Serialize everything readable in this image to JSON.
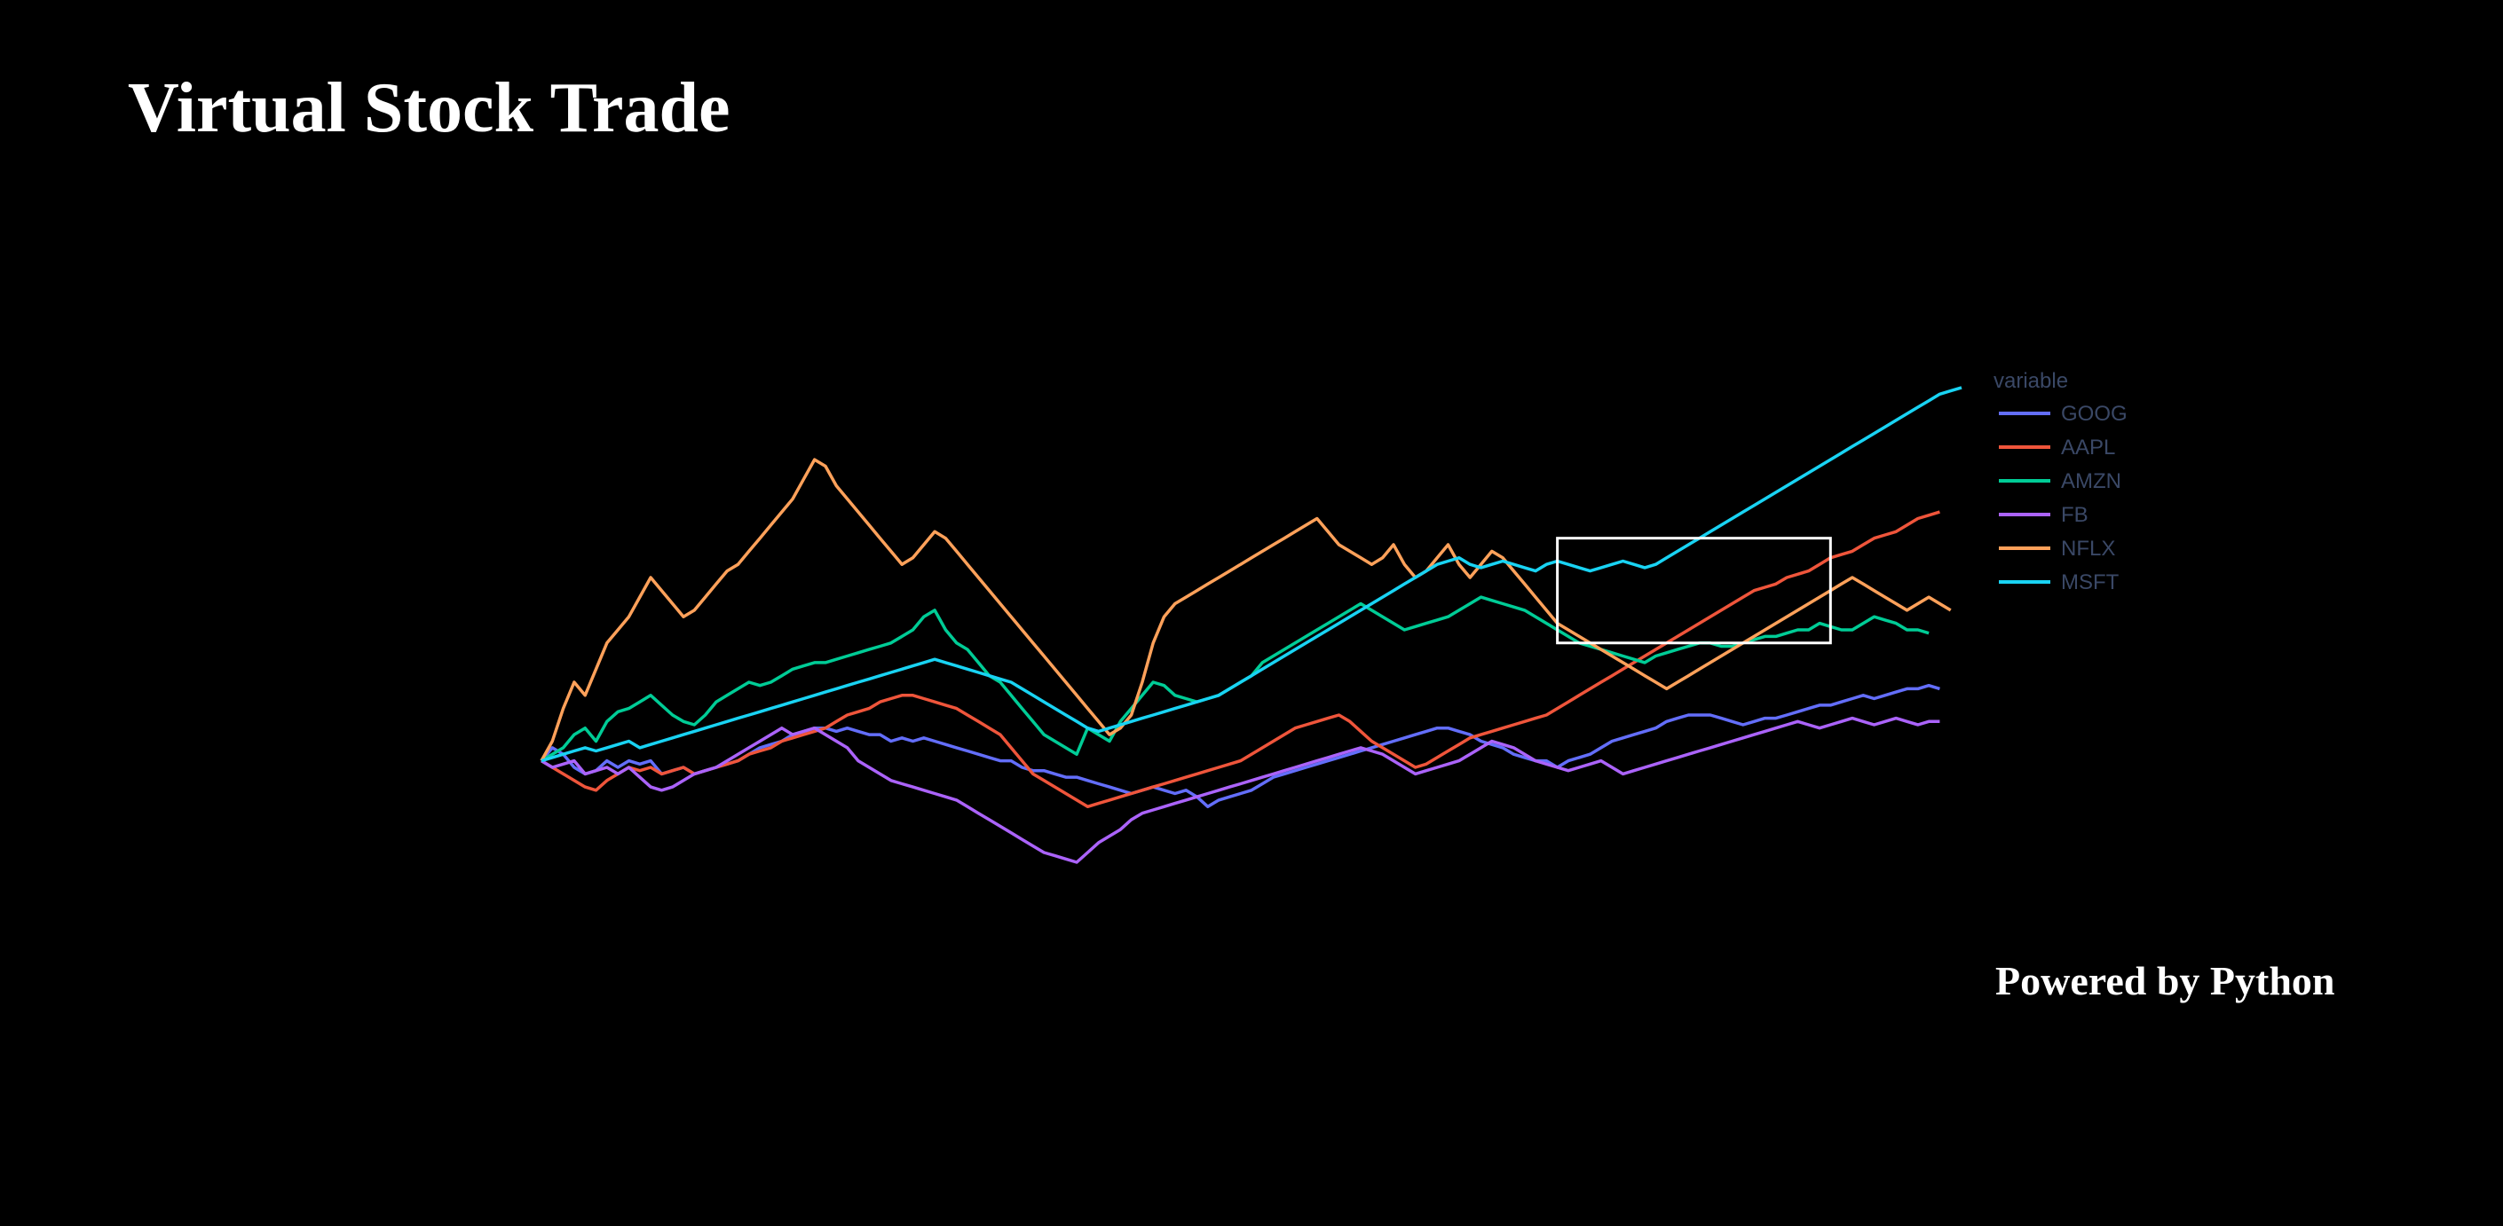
{
  "page": {
    "title": "Virtual Stock Trade",
    "footer": "Powered by Python"
  },
  "chart_data": {
    "type": "line",
    "title": "",
    "xlabel": "",
    "ylabel": "",
    "grid": false,
    "legend_title": "variable",
    "legend_placement": "right",
    "legend_color": "#3a4866",
    "ylim": [
      0.78,
      1.62
    ],
    "selection_box": {
      "x0": 93,
      "x1": 118,
      "y0": 1.34,
      "y1": 1.18
    },
    "series": [
      {
        "name": "GOOG",
        "color": "#636efa",
        "values": [
          1.0,
          1.02,
          1.01,
          0.99,
          0.98,
          0.985,
          1.0,
          0.99,
          1.0,
          0.995,
          1.0,
          0.98,
          0.985,
          0.99,
          0.98,
          0.985,
          0.99,
          0.995,
          1.0,
          1.01,
          1.02,
          1.025,
          1.03,
          1.04,
          1.045,
          1.05,
          1.05,
          1.045,
          1.05,
          1.045,
          1.04,
          1.04,
          1.03,
          1.035,
          1.03,
          1.035,
          1.03,
          1.025,
          1.02,
          1.015,
          1.01,
          1.005,
          1.0,
          1.0,
          0.99,
          0.985,
          0.985,
          0.98,
          0.975,
          0.975,
          0.97,
          0.965,
          0.96,
          0.955,
          0.95,
          0.955,
          0.96,
          0.955,
          0.95,
          0.955,
          0.945,
          0.93,
          0.94,
          0.945,
          0.95,
          0.955,
          0.965,
          0.975,
          0.98,
          0.985,
          0.99,
          0.995,
          1.0,
          1.005,
          1.01,
          1.015,
          1.02,
          1.025,
          1.03,
          1.035,
          1.04,
          1.045,
          1.05,
          1.05,
          1.045,
          1.04,
          1.03,
          1.025,
          1.02,
          1.01,
          1.005,
          1.0,
          1.0,
          0.99,
          1.0,
          1.005,
          1.01,
          1.02,
          1.03,
          1.035,
          1.04,
          1.045,
          1.05,
          1.06,
          1.065,
          1.07,
          1.07,
          1.07,
          1.065,
          1.06,
          1.055,
          1.06,
          1.065,
          1.065,
          1.07,
          1.075,
          1.08,
          1.085,
          1.085,
          1.09,
          1.095,
          1.1,
          1.095,
          1.1,
          1.105,
          1.11,
          1.11,
          1.115,
          1.11
        ]
      },
      {
        "name": "AAPL",
        "color": "#ef553b",
        "values": [
          1.0,
          0.99,
          0.98,
          0.97,
          0.96,
          0.955,
          0.97,
          0.98,
          0.99,
          0.985,
          0.99,
          0.98,
          0.985,
          0.99,
          0.98,
          0.985,
          0.99,
          0.995,
          1.0,
          1.01,
          1.015,
          1.02,
          1.03,
          1.035,
          1.04,
          1.045,
          1.05,
          1.06,
          1.07,
          1.075,
          1.08,
          1.09,
          1.095,
          1.1,
          1.1,
          1.095,
          1.09,
          1.085,
          1.08,
          1.07,
          1.06,
          1.05,
          1.04,
          1.02,
          1.0,
          0.98,
          0.97,
          0.96,
          0.95,
          0.94,
          0.93,
          0.935,
          0.94,
          0.945,
          0.95,
          0.955,
          0.96,
          0.965,
          0.97,
          0.975,
          0.98,
          0.985,
          0.99,
          0.995,
          1.0,
          1.01,
          1.02,
          1.03,
          1.04,
          1.05,
          1.055,
          1.06,
          1.065,
          1.07,
          1.06,
          1.045,
          1.03,
          1.02,
          1.01,
          1.0,
          0.99,
          0.995,
          1.005,
          1.015,
          1.025,
          1.035,
          1.04,
          1.045,
          1.05,
          1.055,
          1.06,
          1.065,
          1.07,
          1.08,
          1.09,
          1.1,
          1.11,
          1.12,
          1.13,
          1.14,
          1.15,
          1.16,
          1.17,
          1.18,
          1.19,
          1.2,
          1.21,
          1.22,
          1.23,
          1.24,
          1.25,
          1.26,
          1.265,
          1.27,
          1.28,
          1.285,
          1.29,
          1.3,
          1.31,
          1.315,
          1.32,
          1.33,
          1.34,
          1.345,
          1.35,
          1.36,
          1.37,
          1.375,
          1.38
        ]
      },
      {
        "name": "AMZN",
        "color": "#00cc96",
        "values": [
          1.0,
          1.01,
          1.02,
          1.04,
          1.05,
          1.03,
          1.06,
          1.075,
          1.08,
          1.09,
          1.1,
          1.085,
          1.07,
          1.06,
          1.055,
          1.07,
          1.09,
          1.1,
          1.11,
          1.12,
          1.115,
          1.12,
          1.13,
          1.14,
          1.145,
          1.15,
          1.15,
          1.155,
          1.16,
          1.165,
          1.17,
          1.175,
          1.18,
          1.19,
          1.2,
          1.22,
          1.23,
          1.2,
          1.18,
          1.17,
          1.15,
          1.13,
          1.12,
          1.1,
          1.08,
          1.06,
          1.04,
          1.03,
          1.02,
          1.01,
          1.05,
          1.04,
          1.03,
          1.06,
          1.08,
          1.1,
          1.12,
          1.115,
          1.1,
          1.095,
          1.09,
          1.095,
          1.1,
          1.11,
          1.12,
          1.13,
          1.15,
          1.16,
          1.17,
          1.18,
          1.19,
          1.2,
          1.21,
          1.22,
          1.23,
          1.24,
          1.23,
          1.22,
          1.21,
          1.2,
          1.205,
          1.21,
          1.215,
          1.22,
          1.23,
          1.24,
          1.25,
          1.245,
          1.24,
          1.235,
          1.23,
          1.22,
          1.21,
          1.2,
          1.19,
          1.18,
          1.175,
          1.17,
          1.165,
          1.16,
          1.155,
          1.15,
          1.16,
          1.165,
          1.17,
          1.175,
          1.18,
          1.18,
          1.175,
          1.175,
          1.18,
          1.185,
          1.19,
          1.19,
          1.195,
          1.2,
          1.2,
          1.21,
          1.205,
          1.2,
          1.2,
          1.21,
          1.22,
          1.215,
          1.21,
          1.2,
          1.2,
          1.195
        ]
      },
      {
        "name": "FB",
        "color": "#ab63fa",
        "values": [
          1.0,
          0.99,
          0.995,
          1.0,
          0.98,
          0.985,
          0.99,
          0.98,
          0.99,
          0.975,
          0.96,
          0.955,
          0.96,
          0.97,
          0.98,
          0.985,
          0.99,
          1.0,
          1.01,
          1.02,
          1.03,
          1.04,
          1.05,
          1.04,
          1.045,
          1.05,
          1.04,
          1.03,
          1.02,
          1.0,
          0.99,
          0.98,
          0.97,
          0.965,
          0.96,
          0.955,
          0.95,
          0.945,
          0.94,
          0.93,
          0.92,
          0.91,
          0.9,
          0.89,
          0.88,
          0.87,
          0.86,
          0.855,
          0.85,
          0.845,
          0.86,
          0.875,
          0.885,
          0.895,
          0.91,
          0.92,
          0.925,
          0.93,
          0.935,
          0.94,
          0.945,
          0.95,
          0.955,
          0.96,
          0.965,
          0.97,
          0.975,
          0.98,
          0.985,
          0.99,
          0.995,
          1.0,
          1.005,
          1.01,
          1.015,
          1.02,
          1.015,
          1.01,
          1.0,
          0.99,
          0.98,
          0.985,
          0.99,
          0.995,
          1.0,
          1.01,
          1.02,
          1.03,
          1.025,
          1.02,
          1.01,
          1.0,
          0.995,
          0.99,
          0.985,
          0.99,
          0.995,
          1.0,
          0.99,
          0.98,
          0.985,
          0.99,
          0.995,
          1.0,
          1.005,
          1.01,
          1.015,
          1.02,
          1.025,
          1.03,
          1.035,
          1.04,
          1.045,
          1.05,
          1.055,
          1.06,
          1.055,
          1.05,
          1.055,
          1.06,
          1.065,
          1.06,
          1.055,
          1.06,
          1.065,
          1.06,
          1.055,
          1.06,
          1.06
        ]
      },
      {
        "name": "NFLX",
        "color": "#ffa15a",
        "values": [
          1.0,
          1.03,
          1.08,
          1.12,
          1.1,
          1.14,
          1.18,
          1.2,
          1.22,
          1.25,
          1.28,
          1.26,
          1.24,
          1.22,
          1.23,
          1.25,
          1.27,
          1.29,
          1.3,
          1.32,
          1.34,
          1.36,
          1.38,
          1.4,
          1.43,
          1.46,
          1.45,
          1.42,
          1.4,
          1.38,
          1.36,
          1.34,
          1.32,
          1.3,
          1.31,
          1.33,
          1.35,
          1.34,
          1.32,
          1.3,
          1.28,
          1.26,
          1.24,
          1.22,
          1.2,
          1.18,
          1.16,
          1.14,
          1.12,
          1.1,
          1.08,
          1.06,
          1.04,
          1.05,
          1.07,
          1.12,
          1.18,
          1.22,
          1.24,
          1.25,
          1.26,
          1.27,
          1.28,
          1.29,
          1.3,
          1.31,
          1.32,
          1.33,
          1.34,
          1.35,
          1.36,
          1.37,
          1.35,
          1.33,
          1.32,
          1.31,
          1.3,
          1.31,
          1.33,
          1.3,
          1.28,
          1.29,
          1.31,
          1.33,
          1.3,
          1.28,
          1.3,
          1.32,
          1.31,
          1.29,
          1.27,
          1.25,
          1.23,
          1.21,
          1.2,
          1.19,
          1.18,
          1.17,
          1.16,
          1.15,
          1.14,
          1.13,
          1.12,
          1.11,
          1.12,
          1.13,
          1.14,
          1.15,
          1.16,
          1.17,
          1.18,
          1.19,
          1.2,
          1.21,
          1.22,
          1.23,
          1.24,
          1.25,
          1.26,
          1.27,
          1.28,
          1.27,
          1.26,
          1.25,
          1.24,
          1.23,
          1.24,
          1.25,
          1.24,
          1.23
        ]
      },
      {
        "name": "MSFT",
        "color": "#19d3f3",
        "values": [
          1.0,
          1.005,
          1.01,
          1.015,
          1.02,
          1.015,
          1.02,
          1.025,
          1.03,
          1.02,
          1.025,
          1.03,
          1.035,
          1.04,
          1.045,
          1.05,
          1.055,
          1.06,
          1.065,
          1.07,
          1.075,
          1.08,
          1.085,
          1.09,
          1.095,
          1.1,
          1.105,
          1.11,
          1.115,
          1.12,
          1.125,
          1.13,
          1.135,
          1.14,
          1.145,
          1.15,
          1.155,
          1.15,
          1.145,
          1.14,
          1.135,
          1.13,
          1.125,
          1.12,
          1.11,
          1.1,
          1.09,
          1.08,
          1.07,
          1.06,
          1.05,
          1.045,
          1.05,
          1.055,
          1.06,
          1.065,
          1.07,
          1.075,
          1.08,
          1.085,
          1.09,
          1.095,
          1.1,
          1.11,
          1.12,
          1.13,
          1.14,
          1.15,
          1.16,
          1.17,
          1.18,
          1.19,
          1.2,
          1.21,
          1.22,
          1.23,
          1.24,
          1.25,
          1.26,
          1.27,
          1.28,
          1.29,
          1.3,
          1.305,
          1.31,
          1.3,
          1.295,
          1.3,
          1.305,
          1.3,
          1.295,
          1.29,
          1.3,
          1.305,
          1.3,
          1.295,
          1.29,
          1.295,
          1.3,
          1.305,
          1.3,
          1.295,
          1.3,
          1.31,
          1.32,
          1.33,
          1.34,
          1.35,
          1.36,
          1.37,
          1.38,
          1.39,
          1.4,
          1.41,
          1.42,
          1.43,
          1.44,
          1.45,
          1.46,
          1.47,
          1.48,
          1.49,
          1.5,
          1.51,
          1.52,
          1.53,
          1.54,
          1.55,
          1.56,
          1.565,
          1.57
        ]
      }
    ]
  }
}
